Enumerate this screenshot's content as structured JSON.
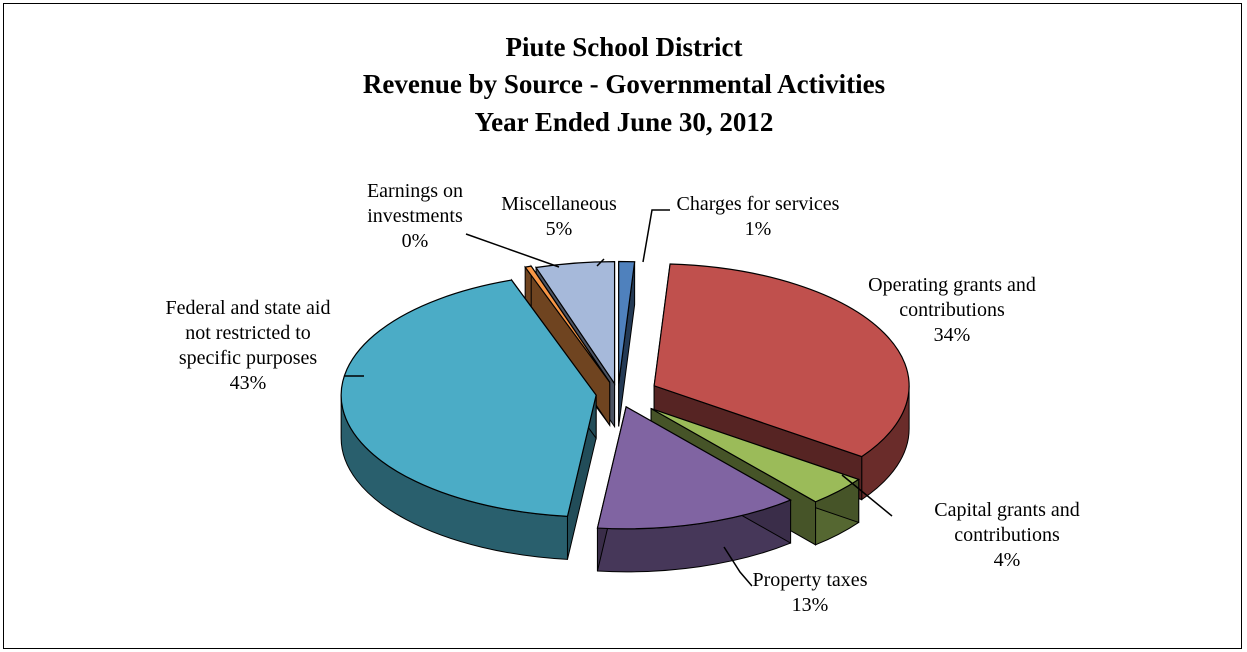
{
  "chart_data": {
    "type": "pie",
    "style": "3d-exploded",
    "title_lines": [
      "Piute School District",
      "Revenue by Source - Governmental Activities",
      "Year Ended June 30, 2012"
    ],
    "slices": [
      {
        "name": "Charges for services",
        "label_lines": [
          "Charges for services"
        ],
        "pct_label": "1%",
        "value": 1,
        "color": "#4F81BD"
      },
      {
        "name": "Operating grants and contributions",
        "label_lines": [
          "Operating grants and",
          "contributions"
        ],
        "pct_label": "34%",
        "value": 34,
        "color": "#C0504D"
      },
      {
        "name": "Capital grants and contributions",
        "label_lines": [
          "Capital grants and",
          "contributions"
        ],
        "pct_label": "4%",
        "value": 4,
        "color": "#9BBB59"
      },
      {
        "name": "Property taxes",
        "label_lines": [
          "Property taxes"
        ],
        "pct_label": "13%",
        "value": 13,
        "color": "#8064A2"
      },
      {
        "name": "Federal and state aid not restricted to specific purposes",
        "label_lines": [
          "Federal and state aid",
          "not restricted to",
          "specific purposes"
        ],
        "pct_label": "43%",
        "value": 43,
        "color": "#4BACC6"
      },
      {
        "name": "Earnings on investments",
        "label_lines": [
          "Earnings on",
          "investments"
        ],
        "pct_label": "0%",
        "value": 0.4,
        "color": "#F79646"
      },
      {
        "name": "Miscellaneous",
        "label_lines": [
          "Miscellaneous"
        ],
        "pct_label": "5%",
        "value": 5,
        "color": "#A6B9DA"
      }
    ],
    "legend": "none",
    "data_labels": "outside-with-leader-lines"
  }
}
